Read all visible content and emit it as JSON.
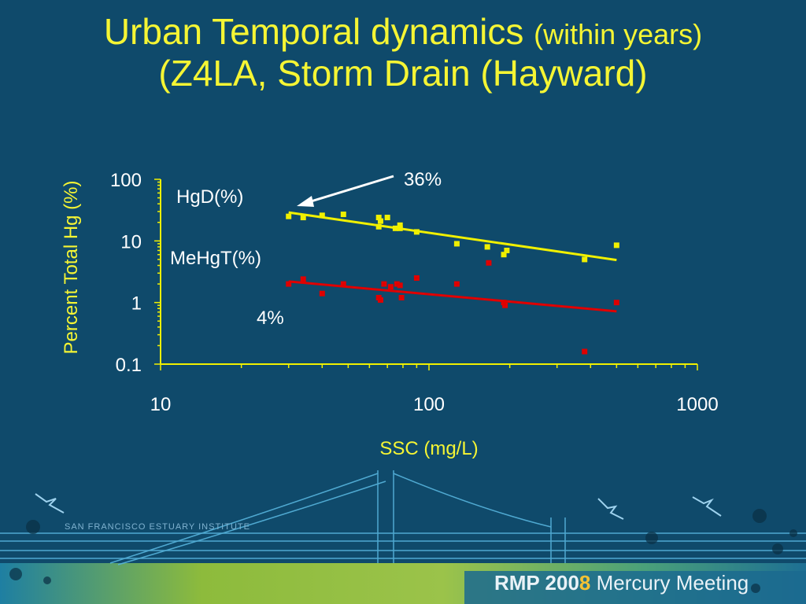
{
  "title": {
    "line1_main": "Urban Temporal dynamics",
    "line1_small": "(within years)",
    "line2": "(Z4LA, Storm Drain (Hayward)"
  },
  "colors": {
    "background": "#0f4a6b",
    "title": "#f5f534",
    "hgd_series": "#f0f000",
    "mehgt_series": "#e00000",
    "axes": "#f0f000",
    "text": "#ffffff"
  },
  "chart_data": {
    "type": "scatter",
    "xscale": "log",
    "yscale": "log",
    "xlabel": "SSC (mg/L)",
    "ylabel": "Percent Total Hg (%)",
    "xlim": [
      10,
      1000
    ],
    "ylim": [
      0.1,
      100
    ],
    "xticks": [
      "10",
      "100",
      "1000"
    ],
    "yticks": [
      "100",
      "10",
      "1",
      "0.1"
    ],
    "grid": false,
    "series": [
      {
        "name": "HgD(%)",
        "color": "#f0f000",
        "points": [
          [
            30,
            25
          ],
          [
            34,
            24
          ],
          [
            40,
            26
          ],
          [
            48,
            27
          ],
          [
            65,
            24
          ],
          [
            66,
            21
          ],
          [
            65,
            17
          ],
          [
            70,
            24
          ],
          [
            75,
            16
          ],
          [
            78,
            18
          ],
          [
            78,
            16
          ],
          [
            90,
            14
          ],
          [
            127,
            9
          ],
          [
            165,
            8
          ],
          [
            190,
            6
          ],
          [
            195,
            7
          ],
          [
            380,
            5
          ],
          [
            500,
            8.5
          ]
        ],
        "fit": [
          [
            30,
            29
          ],
          [
            500,
            4.9
          ]
        ]
      },
      {
        "name": "MeHgT(%)",
        "color": "#e00000",
        "points": [
          [
            30,
            2
          ],
          [
            34,
            2.4
          ],
          [
            40,
            1.4
          ],
          [
            48,
            2
          ],
          [
            65,
            1.2
          ],
          [
            66,
            1.1
          ],
          [
            68,
            2
          ],
          [
            72,
            1.8
          ],
          [
            76,
            2
          ],
          [
            78,
            1.9
          ],
          [
            79,
            1.2
          ],
          [
            90,
            2.5
          ],
          [
            127,
            2
          ],
          [
            167,
            4.4
          ],
          [
            190,
            1.0
          ],
          [
            192,
            0.9
          ],
          [
            380,
            0.16
          ],
          [
            500,
            1.0
          ]
        ],
        "fit": [
          [
            30,
            2.2
          ],
          [
            500,
            0.72
          ]
        ]
      }
    ],
    "annotations": [
      {
        "text": "36%"
      },
      {
        "text": "4%"
      }
    ]
  },
  "footer": {
    "org": "SAN FRANCISCO ESTUARY INSTITUTE",
    "meeting_prefix": "RMP 200",
    "meeting_digit": "8",
    "meeting_suffix": "Mercury Meeting"
  }
}
